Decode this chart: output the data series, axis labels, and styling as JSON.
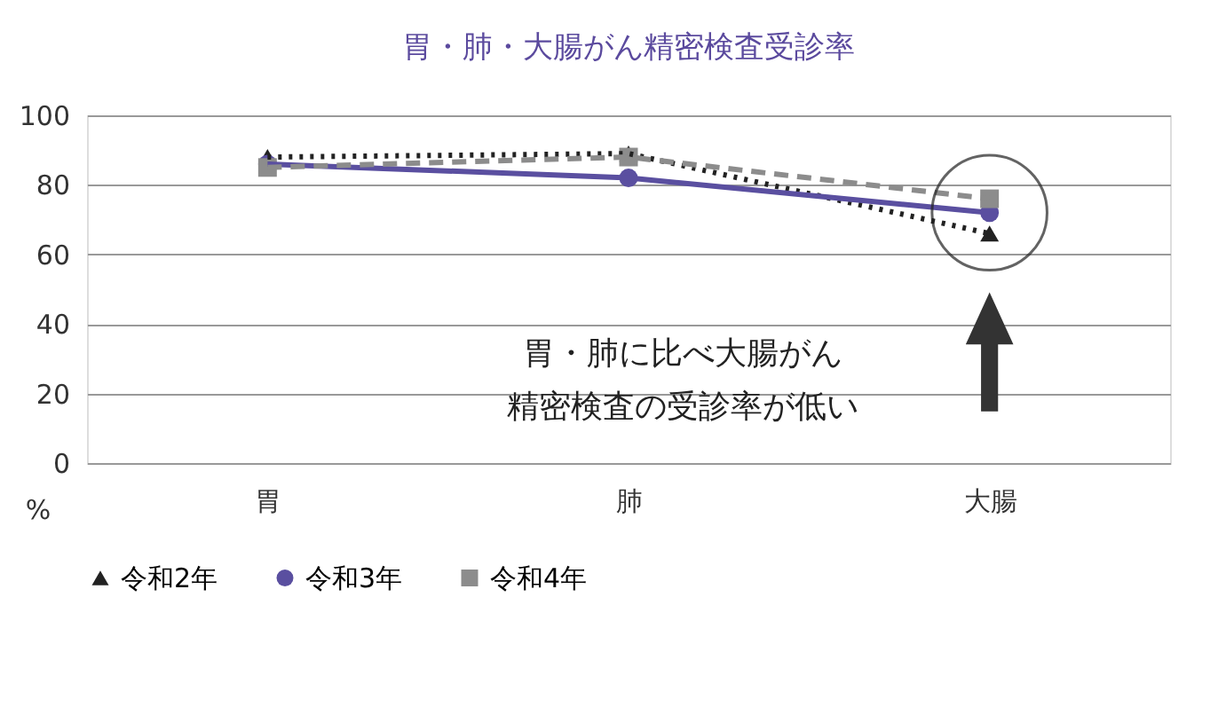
{
  "chart_data": {
    "type": "line",
    "title": "胃・肺・大腸がん精密検査受診率",
    "ylabel": "%",
    "categories": [
      "胃",
      "肺",
      "大腸"
    ],
    "series": [
      {
        "name": "令和2年",
        "color": "#222222",
        "values": [
          88,
          89,
          66
        ],
        "marker": "triangle",
        "line_style": "dotted"
      },
      {
        "name": "令和3年",
        "color": "#5a4fa0",
        "values": [
          86,
          82,
          72
        ],
        "marker": "circle",
        "line_style": "solid"
      },
      {
        "name": "令和4年",
        "color": "#8c8c8c",
        "values": [
          85,
          88,
          76
        ],
        "marker": "square",
        "line_style": "dashed"
      }
    ],
    "ylim": [
      0,
      100
    ],
    "yticks": [
      0,
      20,
      40,
      60,
      80,
      100
    ],
    "grid": "y",
    "legend": "bottom",
    "annotations": [
      "胃・肺に比べ大腸がん",
      "精密検査の受診率が低い"
    ]
  }
}
